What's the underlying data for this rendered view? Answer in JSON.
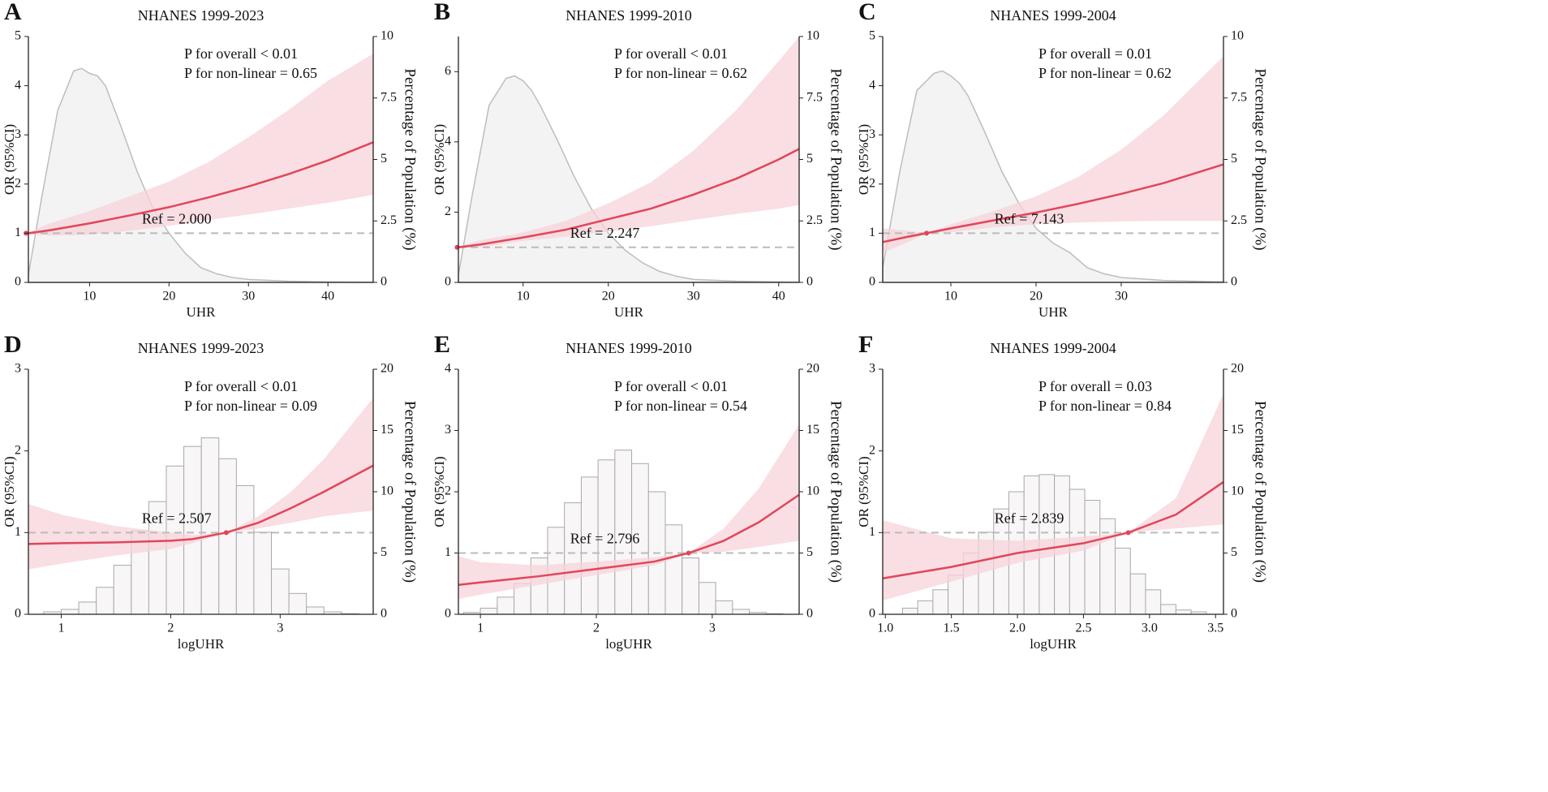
{
  "chart_data": [
    {
      "type": "line",
      "panel_label": "A",
      "title": "NHANES 1999-2023",
      "xlabel": "UHR",
      "ylabel": "OR (95%CI)",
      "y2label": "Percentage of Population (%)",
      "annotations": [
        "P for overall < 0.01",
        "P for non-linear = 0.65"
      ],
      "ref": {
        "value": 2.0,
        "label": "Ref = 2.000"
      },
      "reference_line": 1,
      "xlim": [
        2.3,
        45.7
      ],
      "xticks": [
        10,
        20,
        30,
        40
      ],
      "ylim": [
        0,
        5
      ],
      "yticks": [
        0,
        1,
        2,
        3,
        4,
        5
      ],
      "y2lim": [
        0,
        10
      ],
      "y2ticks": [
        0,
        2.5,
        5,
        7.5,
        10
      ],
      "color": "#e0465a",
      "band_color": "#f7d3d9",
      "x": [
        2.3,
        5,
        10,
        15,
        20,
        25,
        30,
        35,
        40,
        45.7
      ],
      "values": [
        1.0,
        1.06,
        1.2,
        1.36,
        1.53,
        1.73,
        1.95,
        2.2,
        2.48,
        2.85
      ],
      "lower": [
        0.98,
        0.95,
        0.97,
        1.05,
        1.15,
        1.27,
        1.38,
        1.5,
        1.62,
        1.78
      ],
      "upper": [
        1.02,
        1.2,
        1.45,
        1.75,
        2.05,
        2.45,
        2.95,
        3.5,
        4.1,
        4.65
      ],
      "density": {
        "axis": "y2",
        "x": [
          2.3,
          4,
          6,
          8,
          9,
          10,
          11,
          12,
          14,
          16,
          18,
          20,
          22,
          24,
          26,
          28,
          30,
          35,
          40,
          45.7
        ],
        "values": [
          0.3,
          3.5,
          7.0,
          8.6,
          8.7,
          8.5,
          8.4,
          8.0,
          6.3,
          4.5,
          3.0,
          2.0,
          1.2,
          0.6,
          0.35,
          0.2,
          0.12,
          0.05,
          0.02,
          0.01
        ]
      }
    },
    {
      "type": "line",
      "panel_label": "B",
      "title": "NHANES 1999-2010",
      "xlabel": "UHR",
      "ylabel": "OR (95%CI)",
      "y2label": "Percentage of Population (%)",
      "annotations": [
        "P for overall < 0.01",
        "P for non-linear = 0.62"
      ],
      "ref": {
        "value": 2.247,
        "label": "Ref = 2.247"
      },
      "reference_line": 1,
      "xlim": [
        2.4,
        42.4
      ],
      "xticks": [
        10,
        20,
        30,
        40
      ],
      "ylim": [
        0,
        7
      ],
      "yticks": [
        0,
        2,
        4,
        6
      ],
      "y2lim": [
        0,
        10
      ],
      "y2ticks": [
        0,
        2.5,
        5,
        7.5,
        10
      ],
      "color": "#e0465a",
      "band_color": "#f7d3d9",
      "x": [
        2.4,
        5,
        10,
        15,
        20,
        25,
        30,
        35,
        40,
        42.4
      ],
      "values": [
        1.0,
        1.08,
        1.28,
        1.5,
        1.8,
        2.1,
        2.5,
        2.95,
        3.5,
        3.8
      ],
      "lower": [
        0.98,
        1.0,
        1.18,
        1.3,
        1.45,
        1.6,
        1.78,
        1.95,
        2.1,
        2.2
      ],
      "upper": [
        1.02,
        1.2,
        1.42,
        1.75,
        2.25,
        2.85,
        3.75,
        4.9,
        6.3,
        7.0
      ],
      "density": {
        "axis": "y2",
        "x": [
          2.4,
          4,
          6,
          8,
          9,
          10,
          11,
          12,
          14,
          16,
          18,
          20,
          22,
          24,
          26,
          28,
          30,
          35,
          42.4
        ],
        "values": [
          0.3,
          3.5,
          7.2,
          8.3,
          8.4,
          8.2,
          7.8,
          7.2,
          5.8,
          4.3,
          3.0,
          2.0,
          1.3,
          0.8,
          0.45,
          0.25,
          0.12,
          0.05,
          0.01
        ]
      }
    },
    {
      "type": "line",
      "panel_label": "C",
      "title": "NHANES 1999-2004",
      "xlabel": "UHR",
      "ylabel": "OR (95%CI)",
      "y2label": "Percentage of Population (%)",
      "annotations": [
        "P for overall = 0.01",
        "P for non-linear = 0.62"
      ],
      "ref": {
        "value": 7.143,
        "label": "Ref = 7.143"
      },
      "reference_line": 1,
      "xlim": [
        2,
        42
      ],
      "xticks": [
        10,
        20,
        30
      ],
      "ylim": [
        0,
        5
      ],
      "yticks": [
        0,
        1,
        2,
        3,
        4,
        5
      ],
      "y2lim": [
        0,
        10
      ],
      "y2ticks": [
        0,
        2.5,
        5,
        7.5,
        10
      ],
      "color": "#e0465a",
      "band_color": "#f7d3d9",
      "x": [
        2,
        5,
        7.143,
        10,
        15,
        20,
        25,
        30,
        35,
        42
      ],
      "values": [
        0.82,
        0.93,
        1.0,
        1.1,
        1.26,
        1.42,
        1.6,
        1.8,
        2.02,
        2.4
      ],
      "lower": [
        0.6,
        0.82,
        1.0,
        1.02,
        1.12,
        1.18,
        1.22,
        1.24,
        1.25,
        1.25
      ],
      "upper": [
        1.1,
        1.05,
        1.0,
        1.18,
        1.45,
        1.75,
        2.15,
        2.7,
        3.4,
        4.6
      ],
      "density": {
        "axis": "y2",
        "x": [
          2,
          4,
          6,
          8,
          9,
          10,
          11,
          12,
          14,
          16,
          18,
          20,
          22,
          24,
          26,
          28,
          30,
          35,
          42
        ],
        "values": [
          0.6,
          4.5,
          7.8,
          8.5,
          8.6,
          8.4,
          8.1,
          7.6,
          6.1,
          4.5,
          3.2,
          2.2,
          1.6,
          1.2,
          0.6,
          0.35,
          0.2,
          0.08,
          0.02
        ]
      }
    },
    {
      "type": "line",
      "panel_label": "D",
      "title": "NHANES 1999-2023",
      "xlabel": "logUHR",
      "ylabel": "OR (95%CI)",
      "y2label": "Percentage of Population (%)",
      "annotations": [
        "P for overall < 0.01",
        "P for non-linear = 0.09"
      ],
      "ref": {
        "value": 2.507,
        "label": "Ref = 2.507"
      },
      "reference_line": 1,
      "xlim": [
        0.7,
        3.85
      ],
      "xticks": [
        1,
        2,
        3
      ],
      "ylim": [
        0,
        3
      ],
      "yticks": [
        0,
        1,
        2,
        3
      ],
      "y2lim": [
        0,
        20
      ],
      "y2ticks": [
        0,
        5,
        10,
        15,
        20
      ],
      "color": "#e0465a",
      "band_color": "#f7d3d9",
      "x": [
        0.7,
        1,
        1.5,
        2,
        2.2,
        2.507,
        2.8,
        3.1,
        3.4,
        3.85
      ],
      "values": [
        0.86,
        0.87,
        0.88,
        0.9,
        0.92,
        1.0,
        1.12,
        1.3,
        1.5,
        1.82
      ],
      "lower": [
        0.55,
        0.62,
        0.72,
        0.8,
        0.87,
        1.0,
        1.05,
        1.12,
        1.2,
        1.27
      ],
      "upper": [
        1.35,
        1.22,
        1.08,
        1.0,
        0.97,
        1.0,
        1.2,
        1.5,
        1.9,
        2.65
      ],
      "histogram": {
        "axis": "y2",
        "bins": [
          0.84,
          1.0,
          1.16,
          1.32,
          1.48,
          1.64,
          1.8,
          1.96,
          2.12,
          2.28,
          2.44,
          2.6,
          2.76,
          2.92,
          3.08,
          3.24,
          3.4,
          3.56,
          3.72
        ],
        "counts": [
          0.2,
          0.4,
          1,
          2.2,
          4,
          6.8,
          9.2,
          12.1,
          13.7,
          14.4,
          12.7,
          10.5,
          6.7,
          3.7,
          1.7,
          0.6,
          0.2,
          0.05
        ]
      }
    },
    {
      "type": "line",
      "panel_label": "E",
      "title": "NHANES 1999-2010",
      "xlabel": "logUHR",
      "ylabel": "OR (95%CI)",
      "y2label": "Percentage of Population (%)",
      "annotations": [
        "P for overall < 0.01",
        "P for non-linear = 0.54"
      ],
      "ref": {
        "value": 2.796,
        "label": "Ref = 2.796"
      },
      "reference_line": 1,
      "xlim": [
        0.81,
        3.75
      ],
      "xticks": [
        1,
        2,
        3
      ],
      "ylim": [
        0,
        4
      ],
      "yticks": [
        0,
        1,
        2,
        3,
        4
      ],
      "y2lim": [
        0,
        20
      ],
      "y2ticks": [
        0,
        5,
        10,
        15,
        20
      ],
      "color": "#e0465a",
      "band_color": "#f7d3d9",
      "x": [
        0.81,
        1,
        1.5,
        2,
        2.5,
        2.796,
        3.1,
        3.4,
        3.75
      ],
      "values": [
        0.48,
        0.52,
        0.62,
        0.74,
        0.86,
        1.0,
        1.2,
        1.5,
        1.95
      ],
      "lower": [
        0.25,
        0.32,
        0.48,
        0.64,
        0.8,
        1.0,
        1.02,
        1.1,
        1.2
      ],
      "upper": [
        0.95,
        0.85,
        0.8,
        0.86,
        0.93,
        1.0,
        1.4,
        2.05,
        3.1
      ],
      "histogram": {
        "axis": "y2",
        "bins": [
          0.855,
          1.0,
          1.145,
          1.29,
          1.435,
          1.58,
          1.725,
          1.87,
          2.015,
          2.16,
          2.305,
          2.45,
          2.595,
          2.74,
          2.885,
          3.03,
          3.175,
          3.32,
          3.465,
          3.61
        ],
        "counts": [
          0.15,
          0.5,
          1.4,
          2.5,
          4.6,
          7.1,
          9.1,
          11.2,
          12.6,
          13.4,
          12.3,
          10.0,
          7.3,
          4.6,
          2.6,
          1.1,
          0.4,
          0.15,
          0.05
        ]
      }
    },
    {
      "type": "line",
      "panel_label": "F",
      "title": "NHANES 1999-2004",
      "xlabel": "logUHR",
      "ylabel": "OR (95%CI)",
      "y2label": "Percentage of Population (%)",
      "annotations": [
        "P for overall = 0.03",
        "P for non-linear = 0.84"
      ],
      "ref": {
        "value": 2.839,
        "label": "Ref = 2.839"
      },
      "reference_line": 1,
      "xlim": [
        0.98,
        3.56
      ],
      "xticks": [
        {
          "value": 1,
          "label": "1.0"
        },
        1.5,
        {
          "value": 2,
          "label": "2.0"
        },
        2.5,
        {
          "value": 3,
          "label": "3.0"
        },
        3.5
      ],
      "ylim": [
        0,
        3
      ],
      "yticks": [
        0,
        1,
        2,
        3
      ],
      "y2lim": [
        0,
        20
      ],
      "y2ticks": [
        0,
        5,
        10,
        15,
        20
      ],
      "color": "#e0465a",
      "band_color": "#f7d3d9",
      "x": [
        0.98,
        1.5,
        2,
        2.5,
        2.839,
        3.2,
        3.56
      ],
      "values": [
        0.44,
        0.58,
        0.75,
        0.87,
        1.0,
        1.22,
        1.62
      ],
      "lower": [
        0.17,
        0.4,
        0.63,
        0.78,
        1.0,
        1.05,
        1.1
      ],
      "upper": [
        1.15,
        0.93,
        0.9,
        0.95,
        1.0,
        1.42,
        2.7
      ],
      "histogram": {
        "axis": "y2",
        "bins": [
          1.13,
          1.245,
          1.36,
          1.475,
          1.59,
          1.705,
          1.82,
          1.935,
          2.05,
          2.165,
          2.28,
          2.395,
          2.51,
          2.625,
          2.74,
          2.855,
          2.97,
          3.085,
          3.2,
          3.315,
          3.43
        ],
        "counts": [
          0.5,
          1.1,
          2,
          3.2,
          5,
          6.7,
          8.6,
          10,
          11.3,
          11.4,
          11.3,
          10.2,
          9.3,
          7.8,
          5.4,
          3.3,
          2.0,
          0.8,
          0.35,
          0.2
        ]
      }
    }
  ]
}
